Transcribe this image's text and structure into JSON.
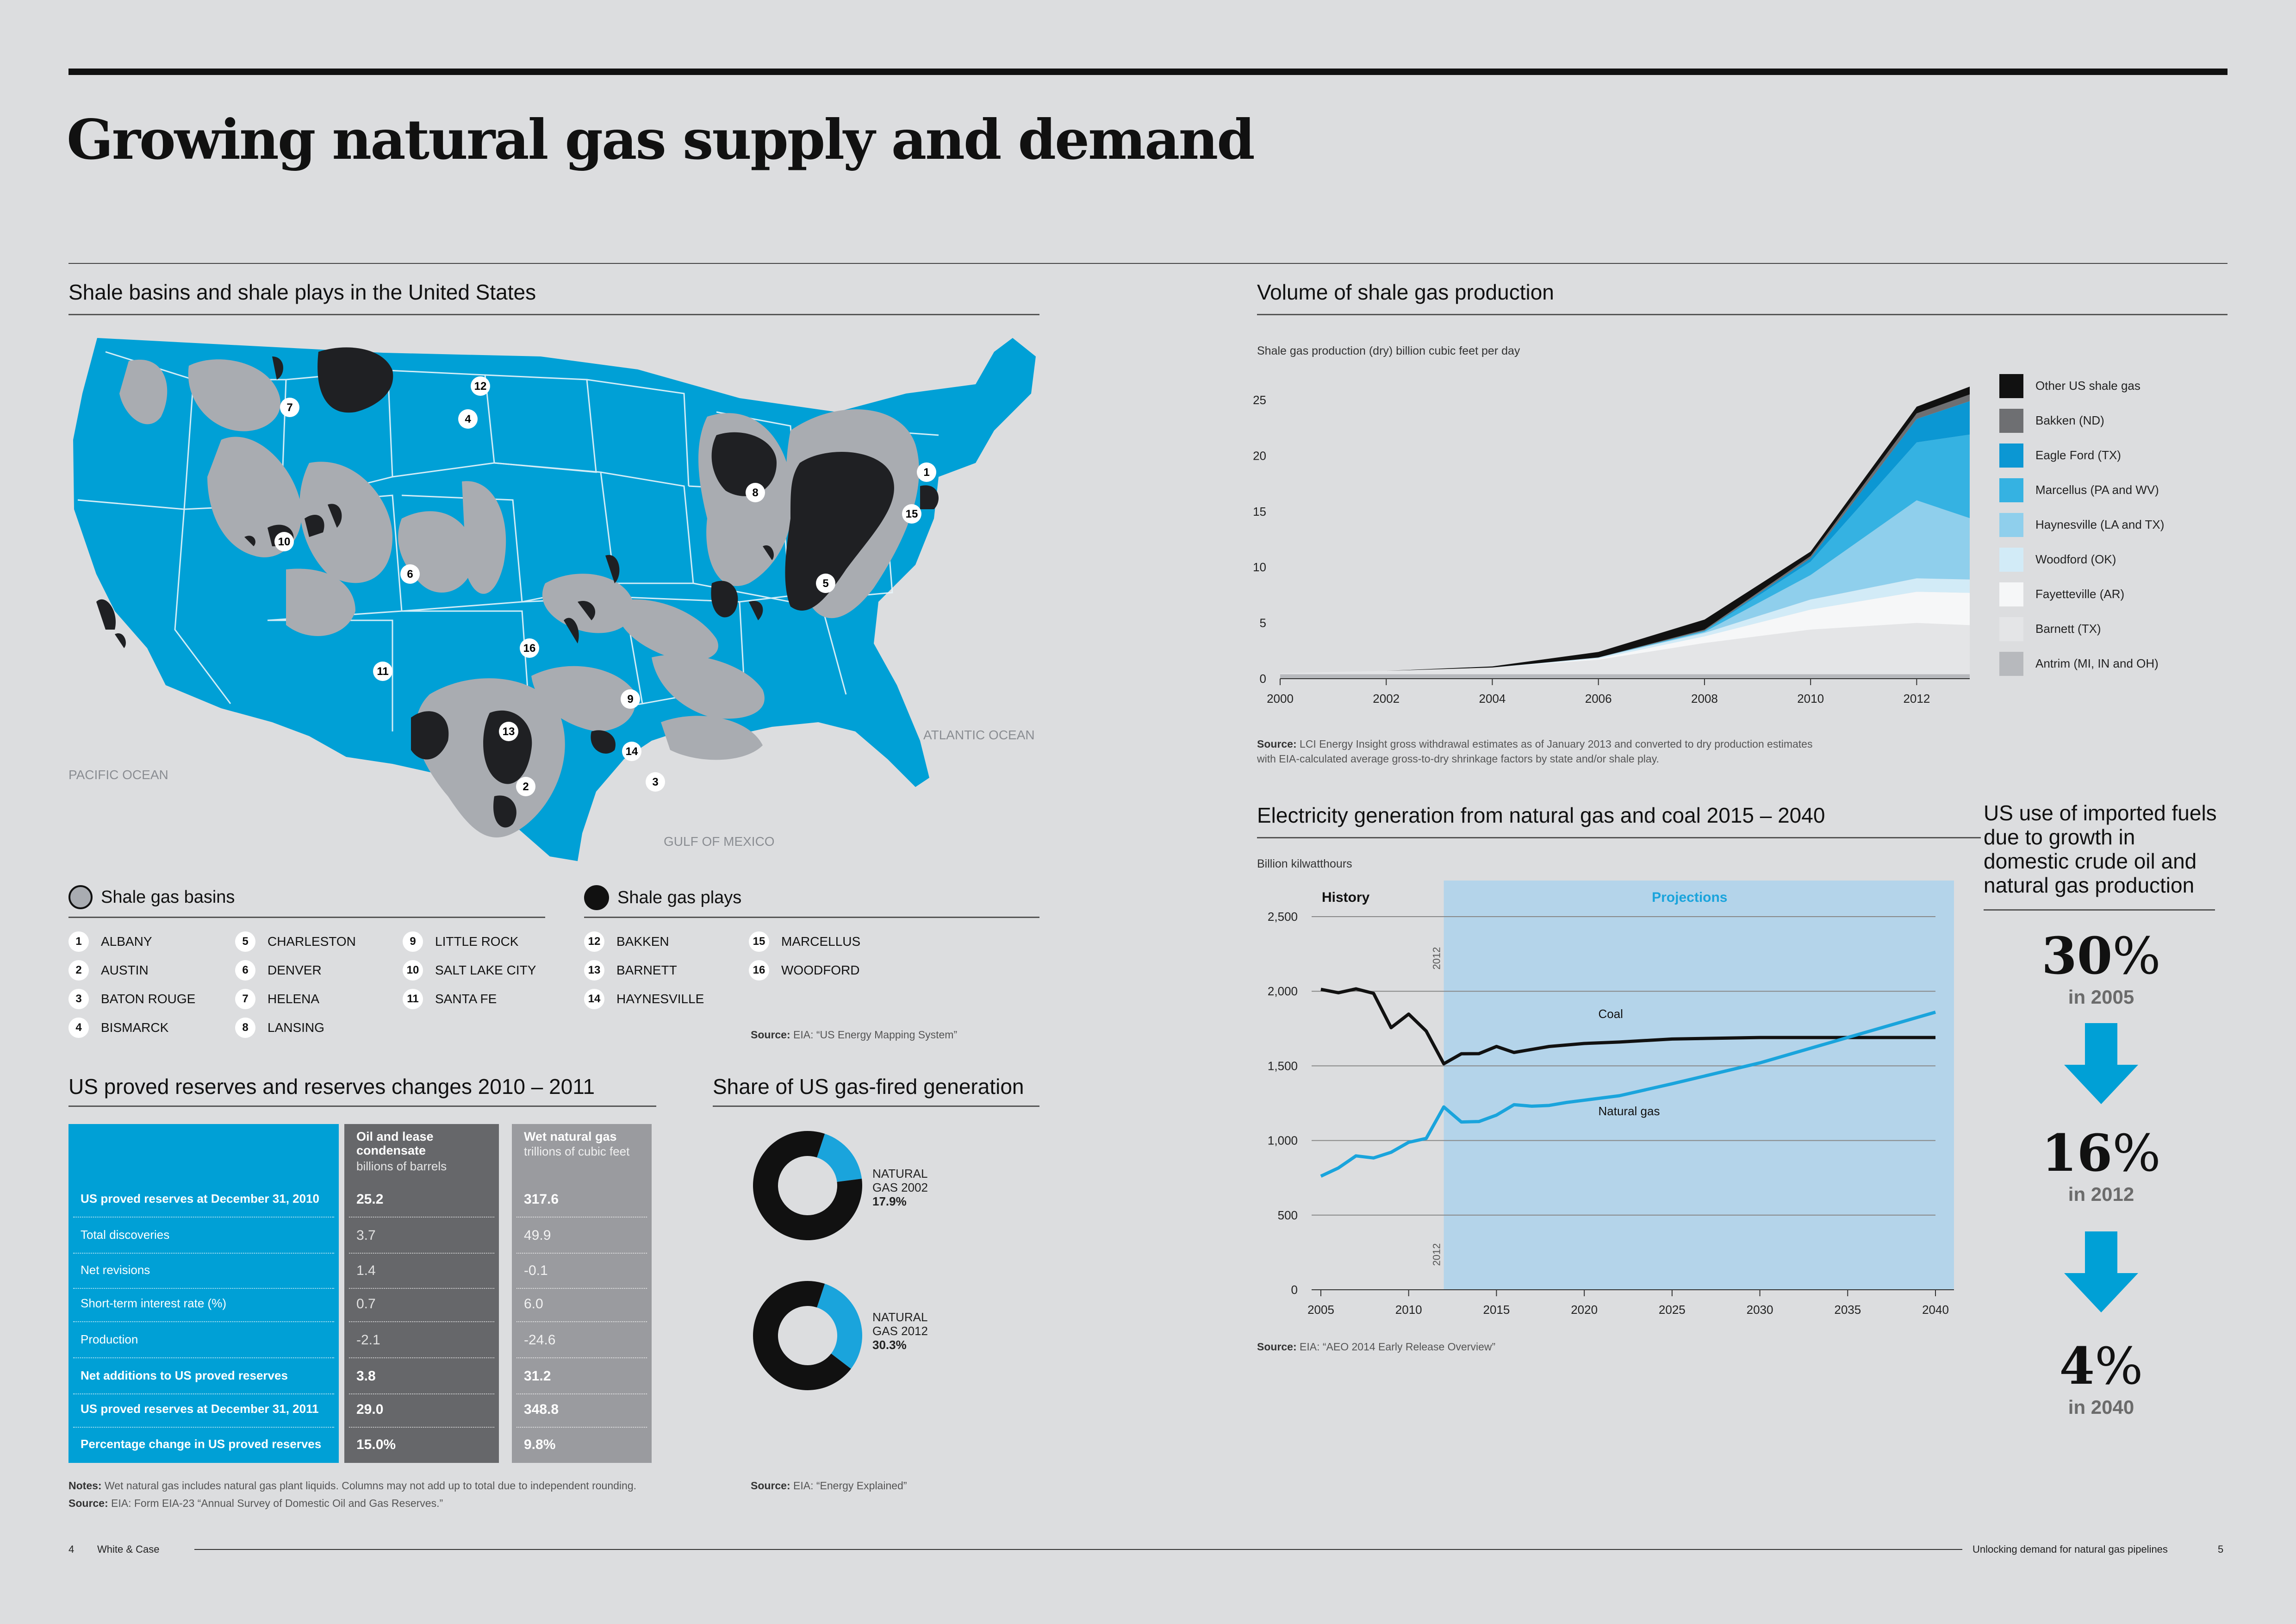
{
  "title": "Growing natural gas supply and demand",
  "map": {
    "title": "Shale basins and shale plays in the United States",
    "labels": {
      "pacific": "PACIFIC OCEAN",
      "atlantic": "ATLANTIC OCEAN",
      "gulf": "GULF OF MEXICO"
    },
    "basins_legend": "Shale gas basins",
    "plays_legend": "Shale gas plays",
    "basins": [
      {
        "num": "1",
        "name": "ALBANY"
      },
      {
        "num": "2",
        "name": "AUSTIN"
      },
      {
        "num": "3",
        "name": "BATON ROUGE"
      },
      {
        "num": "4",
        "name": "BISMARCK"
      },
      {
        "num": "5",
        "name": "CHARLESTON"
      },
      {
        "num": "6",
        "name": "DENVER"
      },
      {
        "num": "7",
        "name": "HELENA"
      },
      {
        "num": "8",
        "name": "LANSING"
      },
      {
        "num": "9",
        "name": "LITTLE ROCK"
      },
      {
        "num": "10",
        "name": "SALT LAKE CITY"
      },
      {
        "num": "11",
        "name": "SANTA FE"
      }
    ],
    "plays": [
      {
        "num": "12",
        "name": "BAKKEN"
      },
      {
        "num": "13",
        "name": "BARNETT"
      },
      {
        "num": "14",
        "name": "HAYNESVILLE"
      },
      {
        "num": "15",
        "name": "MARCELLUS"
      },
      {
        "num": "16",
        "name": "WOODFORD"
      }
    ],
    "source_label": "Source:",
    "source_text": "EIA: “US Energy Mapping System”"
  },
  "reserves": {
    "title": "US proved reserves and reserves changes 2010 – 2011",
    "col1_head": "Oil and lease condensate",
    "col1_unit": "billions of barrels",
    "col2_head": "Wet natural gas",
    "col2_unit": "trillions of cubic feet",
    "rows": [
      {
        "label": "US proved reserves at December 31, 2010",
        "oil": "25.2",
        "gas": "317.6",
        "bold": true
      },
      {
        "label": "Total discoveries",
        "oil": "3.7",
        "gas": "49.9",
        "bold": false
      },
      {
        "label": "Net revisions",
        "oil": "1.4",
        "gas": "-0.1",
        "bold": false
      },
      {
        "label": "Short-term interest rate (%)",
        "oil": "0.7",
        "gas": "6.0",
        "bold": false
      },
      {
        "label": "Production",
        "oil": "-2.1",
        "gas": "-24.6",
        "bold": false
      },
      {
        "label": "Net additions to US proved reserves",
        "oil": "3.8",
        "gas": "31.2",
        "bold": true
      },
      {
        "label": "US proved reserves at December 31, 2011",
        "oil": "29.0",
        "gas": "348.8",
        "bold": true
      },
      {
        "label": "Percentage change in US proved reserves",
        "oil": "15.0%",
        "gas": "9.8%",
        "bold": true
      }
    ],
    "notes_label": "Notes:",
    "notes_text": "Wet natural gas includes natural gas plant liquids. Columns may not add up to total due to independent rounding.",
    "source_label": "Source:",
    "source_text": "EIA: Form EIA-23 “Annual Survey of Domestic Oil and Gas Reserves.”"
  },
  "share": {
    "title": "Share of US gas-fired generation",
    "d1_line1": "NATURAL",
    "d1_line2": "GAS 2002",
    "d1_pct": "17.9%",
    "d2_line1": "NATURAL",
    "d2_line2": "GAS 2012",
    "d2_pct": "30.3%",
    "source_label": "Source:",
    "source_text": "EIA: “Energy Explained”"
  },
  "shale_volume": {
    "title": "Volume of shale gas production",
    "ylabel": "Shale gas production (dry) billion cubic feet per day",
    "source_label": "Source:",
    "source_line1": "LCI Energy Insight gross withdrawal estimates as of January 2013 and converted to dry production estimates",
    "source_line2": "with EIA-calculated average gross-to-dry shrinkage factors by state and/or shale play."
  },
  "electricity": {
    "title": "Electricity generation from natural gas and coal 2015 – 2040",
    "ylabel": "Billion kilwatthours",
    "history": "History",
    "projections": "Projections",
    "marker_year": "2012",
    "coal_label": "Coal",
    "gas_label": "Natural gas",
    "source_label": "Source:",
    "source_text": "EIA: “AEO 2014 Early Release Overview”"
  },
  "imports": {
    "title": "US use of imported fuels due to growth in domestic crude oil and natural gas production",
    "items": [
      {
        "value": "30",
        "unit": "%",
        "year": "in 2005"
      },
      {
        "value": "16",
        "unit": "%",
        "year": "in 2012"
      },
      {
        "value": "4",
        "unit": "%",
        "year": "in 2040"
      }
    ]
  },
  "footer": {
    "left_page": "4",
    "left_text": "White & Case",
    "right_text": "Unlocking demand for natural gas pipelines",
    "right_page": "5"
  },
  "colors": {
    "accent_blue": "#00a0d6",
    "dark": "#222222",
    "grey_basin": "#a9acb1",
    "background": "#dcdddf",
    "projection_band": "#b4d4ea"
  },
  "chart_data": [
    {
      "type": "area",
      "title": "Volume of shale gas production",
      "ylabel": "Shale gas production (dry) billion cubic feet per day",
      "x": [
        2000,
        2002,
        2004,
        2006,
        2008,
        2010,
        2012,
        2013
      ],
      "xticks": [
        2000,
        2002,
        2004,
        2006,
        2008,
        2010,
        2012
      ],
      "yticks": [
        0,
        5,
        10,
        15,
        20,
        25
      ],
      "ylim": [
        0,
        26
      ],
      "stacked": true,
      "series": [
        {
          "name": "Antrim (MI, IN and OH)",
          "color": "#b7b9bd",
          "values": [
            0.4,
            0.4,
            0.4,
            0.4,
            0.4,
            0.4,
            0.4,
            0.4
          ]
        },
        {
          "name": "Barnett (TX)",
          "color": "#e4e5e7",
          "values": [
            0.1,
            0.3,
            0.6,
            1.3,
            2.8,
            4.0,
            4.6,
            4.4
          ]
        },
        {
          "name": "Fayetteville (AR)",
          "color": "#f6f7f8",
          "values": [
            0,
            0,
            0,
            0.1,
            0.6,
            1.8,
            2.8,
            2.9
          ]
        },
        {
          "name": "Woodford (OK)",
          "color": "#d2ebf7",
          "values": [
            0,
            0,
            0,
            0.1,
            0.3,
            0.9,
            1.2,
            1.2
          ]
        },
        {
          "name": "Haynesville (LA and TX)",
          "color": "#8fcfec",
          "values": [
            0,
            0,
            0,
            0,
            0.1,
            2.2,
            7.0,
            5.5
          ]
        },
        {
          "name": "Marcellus (PA and WV)",
          "color": "#35b2e2",
          "values": [
            0,
            0,
            0,
            0,
            0.1,
            1.2,
            5.2,
            7.5
          ]
        },
        {
          "name": "Eagle Ford (TX)",
          "color": "#0b97d3",
          "values": [
            0,
            0,
            0,
            0,
            0,
            0.3,
            2.1,
            3.0
          ]
        },
        {
          "name": "Bakken (ND)",
          "color": "#6e6f72",
          "values": [
            0,
            0,
            0,
            0,
            0.1,
            0.2,
            0.5,
            0.6
          ]
        },
        {
          "name": "Other US shale gas",
          "color": "#111111",
          "values": [
            0,
            0,
            0.1,
            0.5,
            0.9,
            0.4,
            0.6,
            0.7
          ]
        }
      ]
    },
    {
      "type": "line",
      "title": "Electricity generation from natural gas and coal 2015 – 2040",
      "ylabel": "Billion kilwatthours",
      "xticks": [
        2005,
        2010,
        2015,
        2020,
        2025,
        2030,
        2035,
        2040
      ],
      "yticks": [
        0,
        500,
        1000,
        1500,
        2000,
        2500
      ],
      "ylim": [
        0,
        2500
      ],
      "xlim": [
        2005,
        2040
      ],
      "projection_start": 2012,
      "series": [
        {
          "name": "Coal",
          "color": "#111111",
          "x": [
            2005,
            2006,
            2007,
            2008,
            2009,
            2010,
            2011,
            2012,
            2013,
            2014,
            2015,
            2016,
            2017,
            2018,
            2019,
            2020,
            2022,
            2025,
            2030,
            2035,
            2040
          ],
          "values": [
            2013,
            1990,
            2016,
            1986,
            1756,
            1847,
            1733,
            1514,
            1581,
            1582,
            1630,
            1590,
            1610,
            1630,
            1640,
            1650,
            1660,
            1680,
            1690,
            1690,
            1690
          ]
        },
        {
          "name": "Natural gas",
          "color": "#1aa4dc",
          "x": [
            2005,
            2006,
            2007,
            2008,
            2009,
            2010,
            2011,
            2012,
            2013,
            2014,
            2015,
            2016,
            2017,
            2018,
            2019,
            2020,
            2022,
            2025,
            2030,
            2035,
            2040
          ],
          "values": [
            761,
            816,
            897,
            883,
            921,
            988,
            1014,
            1225,
            1124,
            1127,
            1170,
            1240,
            1230,
            1235,
            1255,
            1270,
            1300,
            1380,
            1520,
            1690,
            1860
          ]
        }
      ]
    },
    {
      "type": "pie",
      "title": "NATURAL GAS 2002",
      "values": [
        17.9,
        82.1
      ],
      "labels": [
        "Natural gas",
        "Other"
      ],
      "colors": [
        "#1aa4dc",
        "#111111"
      ]
    },
    {
      "type": "pie",
      "title": "NATURAL GAS 2012",
      "values": [
        30.3,
        69.7
      ],
      "labels": [
        "Natural gas",
        "Other"
      ],
      "colors": [
        "#1aa4dc",
        "#111111"
      ]
    },
    {
      "type": "table",
      "title": "US proved reserves and reserves changes 2010 – 2011",
      "columns": [
        "",
        "Oil and lease condensate (billions of barrels)",
        "Wet natural gas (trillions of cubic feet)"
      ],
      "rows": [
        [
          "US proved reserves at December 31, 2010",
          "25.2",
          "317.6"
        ],
        [
          "Total discoveries",
          "3.7",
          "49.9"
        ],
        [
          "Net revisions",
          "1.4",
          "-0.1"
        ],
        [
          "Short-term interest rate (%)",
          "0.7",
          "6.0"
        ],
        [
          "Production",
          "-2.1",
          "-24.6"
        ],
        [
          "Net additions to US proved reserves",
          "3.8",
          "31.2"
        ],
        [
          "US proved reserves at December 31, 2011",
          "29.0",
          "348.8"
        ],
        [
          "Percentage change in US proved reserves",
          "15.0%",
          "9.8%"
        ]
      ]
    }
  ]
}
